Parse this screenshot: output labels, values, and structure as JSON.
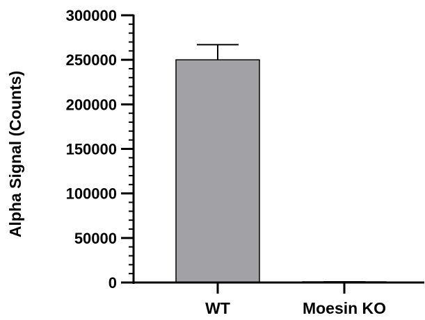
{
  "chart_data": {
    "type": "bar",
    "title": "",
    "xlabel": "",
    "ylabel": "Alpha Signal (Counts)",
    "ylim": [
      0,
      300000
    ],
    "yticks": [
      0,
      50000,
      100000,
      150000,
      200000,
      250000,
      300000
    ],
    "ytick_labels": [
      "0",
      "50000",
      "100000",
      "150000",
      "200000",
      "250000",
      "300000"
    ],
    "categories": [
      "WT",
      "Moesin KO"
    ],
    "values": [
      250000,
      800
    ],
    "error_upper": [
      17000,
      0
    ],
    "bar_color": "#a2a1a6",
    "bar_edge_color": "#000000",
    "grid": false,
    "legend": "none"
  }
}
